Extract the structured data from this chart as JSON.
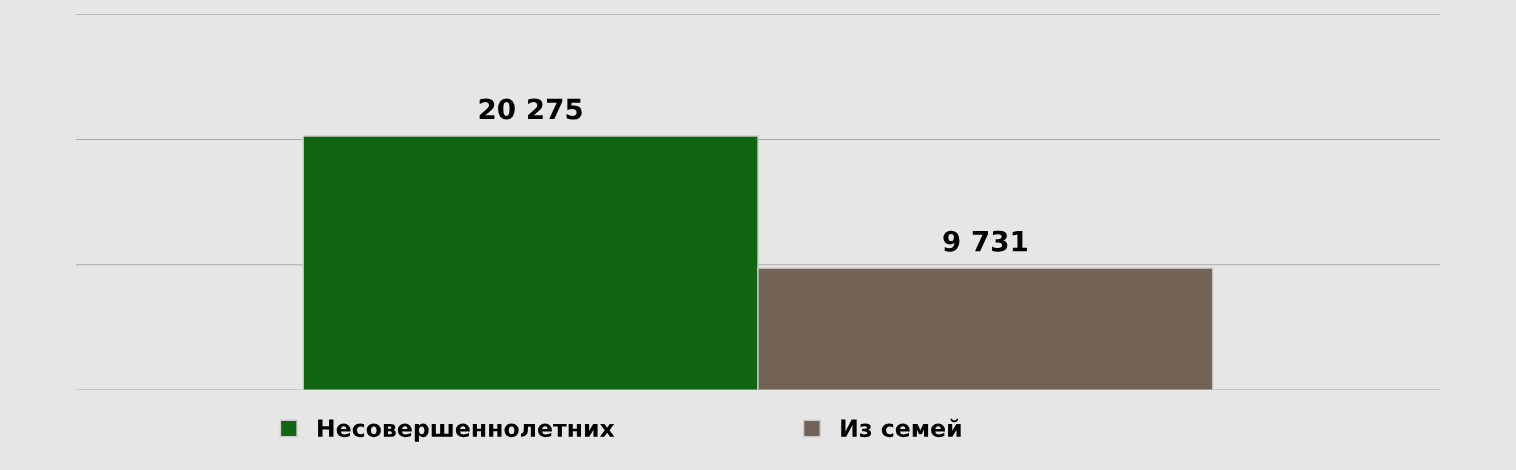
{
  "chart_data": {
    "type": "bar",
    "categories": [
      null
    ],
    "series": [
      {
        "name": "Несовершеннолетних",
        "color": "#116611",
        "values": [
          20275
        ]
      },
      {
        "name": "Из семей",
        "color": "#736256",
        "values": [
          9731
        ]
      }
    ],
    "ylim": [
      0,
      30000
    ],
    "yticks": [
      {
        "value": 0,
        "label": null
      },
      {
        "value": 10000,
        "label": null
      },
      {
        "value": 20000,
        "label": null
      },
      {
        "value": 30000,
        "label": null
      }
    ],
    "grid": "y",
    "legend": "bottom",
    "data_labels": true
  }
}
